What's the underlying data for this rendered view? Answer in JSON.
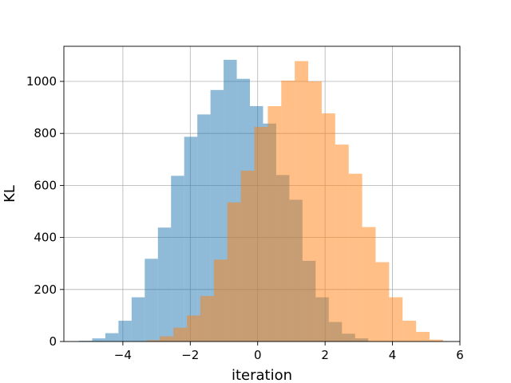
{
  "chart_data": {
    "type": "histogram",
    "title": "",
    "xlabel": "iteration",
    "ylabel": "KL",
    "xlim": [
      -5.75,
      6.0
    ],
    "ylim": [
      0,
      1135
    ],
    "xticks": [
      -4,
      -2,
      0,
      2,
      4,
      6
    ],
    "xtick_labels": [
      "−4",
      "−2",
      "0",
      "2",
      "4",
      "6"
    ],
    "yticks": [
      0,
      200,
      400,
      600,
      800,
      1000
    ],
    "ytick_labels": [
      "0",
      "200",
      "400",
      "600",
      "800",
      "1000"
    ],
    "grid": true,
    "legend": "none",
    "series": [
      {
        "color": "#1f77b4",
        "alpha": 0.5,
        "bins": [
          {
            "x0": -5.3,
            "x1": -4.91,
            "count": 3
          },
          {
            "x0": -4.91,
            "x1": -4.52,
            "count": 12
          },
          {
            "x0": -4.52,
            "x1": -4.13,
            "count": 32
          },
          {
            "x0": -4.13,
            "x1": -3.74,
            "count": 80
          },
          {
            "x0": -3.74,
            "x1": -3.35,
            "count": 170
          },
          {
            "x0": -3.35,
            "x1": -2.96,
            "count": 318
          },
          {
            "x0": -2.96,
            "x1": -2.57,
            "count": 438
          },
          {
            "x0": -2.57,
            "x1": -2.18,
            "count": 637
          },
          {
            "x0": -2.18,
            "x1": -1.79,
            "count": 787
          },
          {
            "x0": -1.79,
            "x1": -1.4,
            "count": 873
          },
          {
            "x0": -1.4,
            "x1": -1.01,
            "count": 967
          },
          {
            "x0": -1.01,
            "x1": -0.62,
            "count": 1083
          },
          {
            "x0": -0.62,
            "x1": -0.23,
            "count": 1010
          },
          {
            "x0": -0.23,
            "x1": 0.16,
            "count": 905
          },
          {
            "x0": 0.16,
            "x1": 0.55,
            "count": 838
          },
          {
            "x0": 0.55,
            "x1": 0.94,
            "count": 640
          },
          {
            "x0": 0.94,
            "x1": 1.33,
            "count": 545
          },
          {
            "x0": 1.33,
            "x1": 1.72,
            "count": 310
          },
          {
            "x0": 1.72,
            "x1": 2.11,
            "count": 170
          },
          {
            "x0": 2.11,
            "x1": 2.5,
            "count": 75
          },
          {
            "x0": 2.5,
            "x1": 2.89,
            "count": 30
          },
          {
            "x0": 2.89,
            "x1": 3.28,
            "count": 12
          }
        ]
      },
      {
        "color": "#ff7f0e",
        "alpha": 0.5,
        "bins": [
          {
            "x0": -3.3,
            "x1": -2.9,
            "count": 5
          },
          {
            "x0": -2.9,
            "x1": -2.5,
            "count": 20
          },
          {
            "x0": -2.5,
            "x1": -2.1,
            "count": 53
          },
          {
            "x0": -2.1,
            "x1": -1.7,
            "count": 100
          },
          {
            "x0": -1.7,
            "x1": -1.3,
            "count": 175
          },
          {
            "x0": -1.3,
            "x1": -0.9,
            "count": 315
          },
          {
            "x0": -0.9,
            "x1": -0.5,
            "count": 535
          },
          {
            "x0": -0.5,
            "x1": -0.1,
            "count": 657
          },
          {
            "x0": -0.1,
            "x1": 0.3,
            "count": 825
          },
          {
            "x0": 0.3,
            "x1": 0.7,
            "count": 905
          },
          {
            "x0": 0.7,
            "x1": 1.1,
            "count": 1003
          },
          {
            "x0": 1.1,
            "x1": 1.5,
            "count": 1078
          },
          {
            "x0": 1.5,
            "x1": 1.9,
            "count": 1000
          },
          {
            "x0": 1.9,
            "x1": 2.3,
            "count": 877
          },
          {
            "x0": 2.3,
            "x1": 2.7,
            "count": 757
          },
          {
            "x0": 2.7,
            "x1": 3.1,
            "count": 645
          },
          {
            "x0": 3.1,
            "x1": 3.5,
            "count": 440
          },
          {
            "x0": 3.5,
            "x1": 3.9,
            "count": 305
          },
          {
            "x0": 3.9,
            "x1": 4.3,
            "count": 170
          },
          {
            "x0": 4.3,
            "x1": 4.7,
            "count": 80
          },
          {
            "x0": 4.7,
            "x1": 5.1,
            "count": 37
          },
          {
            "x0": 5.1,
            "x1": 5.5,
            "count": 7
          }
        ]
      }
    ]
  }
}
